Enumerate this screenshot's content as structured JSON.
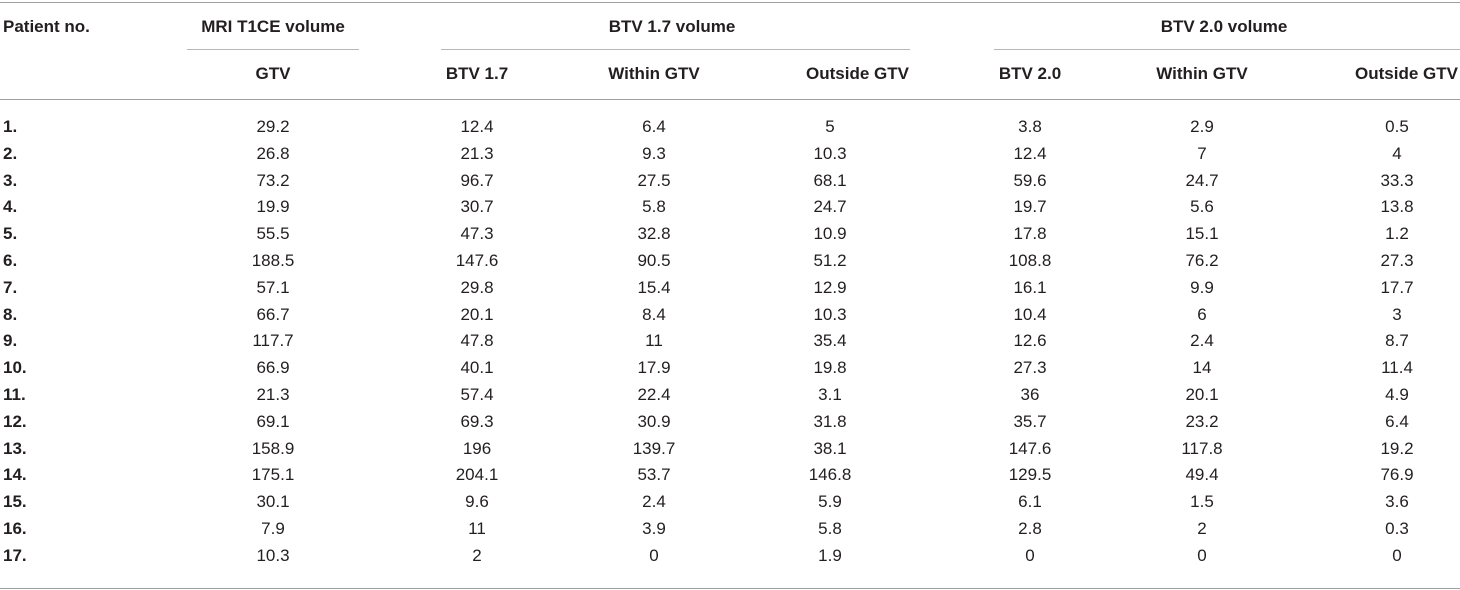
{
  "table": {
    "header": {
      "patient_no": "Patient no.",
      "group_mri": "MRI T1CE volume",
      "group_btv17": "BTV 1.7 volume",
      "group_btv20": "BTV 2.0 volume",
      "columns": [
        "GTV",
        "BTV 1.7",
        "Within GTV",
        "Outside GTV",
        "BTV 2.0",
        "Within GTV",
        "Outside GTV"
      ]
    },
    "rows": [
      {
        "label": "1.",
        "values": [
          "29.2",
          "12.4",
          "6.4",
          "5",
          "3.8",
          "2.9",
          "0.5"
        ]
      },
      {
        "label": "2.",
        "values": [
          "26.8",
          "21.3",
          "9.3",
          "10.3",
          "12.4",
          "7",
          "4"
        ]
      },
      {
        "label": "3.",
        "values": [
          "73.2",
          "96.7",
          "27.5",
          "68.1",
          "59.6",
          "24.7",
          "33.3"
        ]
      },
      {
        "label": "4.",
        "values": [
          "19.9",
          "30.7",
          "5.8",
          "24.7",
          "19.7",
          "5.6",
          "13.8"
        ]
      },
      {
        "label": "5.",
        "values": [
          "55.5",
          "47.3",
          "32.8",
          "10.9",
          "17.8",
          "15.1",
          "1.2"
        ]
      },
      {
        "label": "6.",
        "values": [
          "188.5",
          "147.6",
          "90.5",
          "51.2",
          "108.8",
          "76.2",
          "27.3"
        ]
      },
      {
        "label": "7.",
        "values": [
          "57.1",
          "29.8",
          "15.4",
          "12.9",
          "16.1",
          "9.9",
          "17.7"
        ]
      },
      {
        "label": "8.",
        "values": [
          "66.7",
          "20.1",
          "8.4",
          "10.3",
          "10.4",
          "6",
          "3"
        ]
      },
      {
        "label": "9.",
        "values": [
          "117.7",
          "47.8",
          "11",
          "35.4",
          "12.6",
          "2.4",
          "8.7"
        ]
      },
      {
        "label": "10.",
        "values": [
          "66.9",
          "40.1",
          "17.9",
          "19.8",
          "27.3",
          "14",
          "11.4"
        ]
      },
      {
        "label": "11.",
        "values": [
          "21.3",
          "57.4",
          "22.4",
          "3.1",
          "36",
          "20.1",
          "4.9"
        ]
      },
      {
        "label": "12.",
        "values": [
          "69.1",
          "69.3",
          "30.9",
          "31.8",
          "35.7",
          "23.2",
          "6.4"
        ]
      },
      {
        "label": "13.",
        "values": [
          "158.9",
          "196",
          "139.7",
          "38.1",
          "147.6",
          "117.8",
          "19.2"
        ]
      },
      {
        "label": "14.",
        "values": [
          "175.1",
          "204.1",
          "53.7",
          "146.8",
          "129.5",
          "49.4",
          "76.9"
        ]
      },
      {
        "label": "15.",
        "values": [
          "30.1",
          "9.6",
          "2.4",
          "5.9",
          "6.1",
          "1.5",
          "3.6"
        ]
      },
      {
        "label": "16.",
        "values": [
          "7.9",
          "11",
          "3.9",
          "5.8",
          "2.8",
          "2",
          "0.3"
        ]
      },
      {
        "label": "17.",
        "values": [
          "10.3",
          "2",
          "0",
          "1.9",
          "0",
          "0",
          "0"
        ]
      }
    ]
  }
}
